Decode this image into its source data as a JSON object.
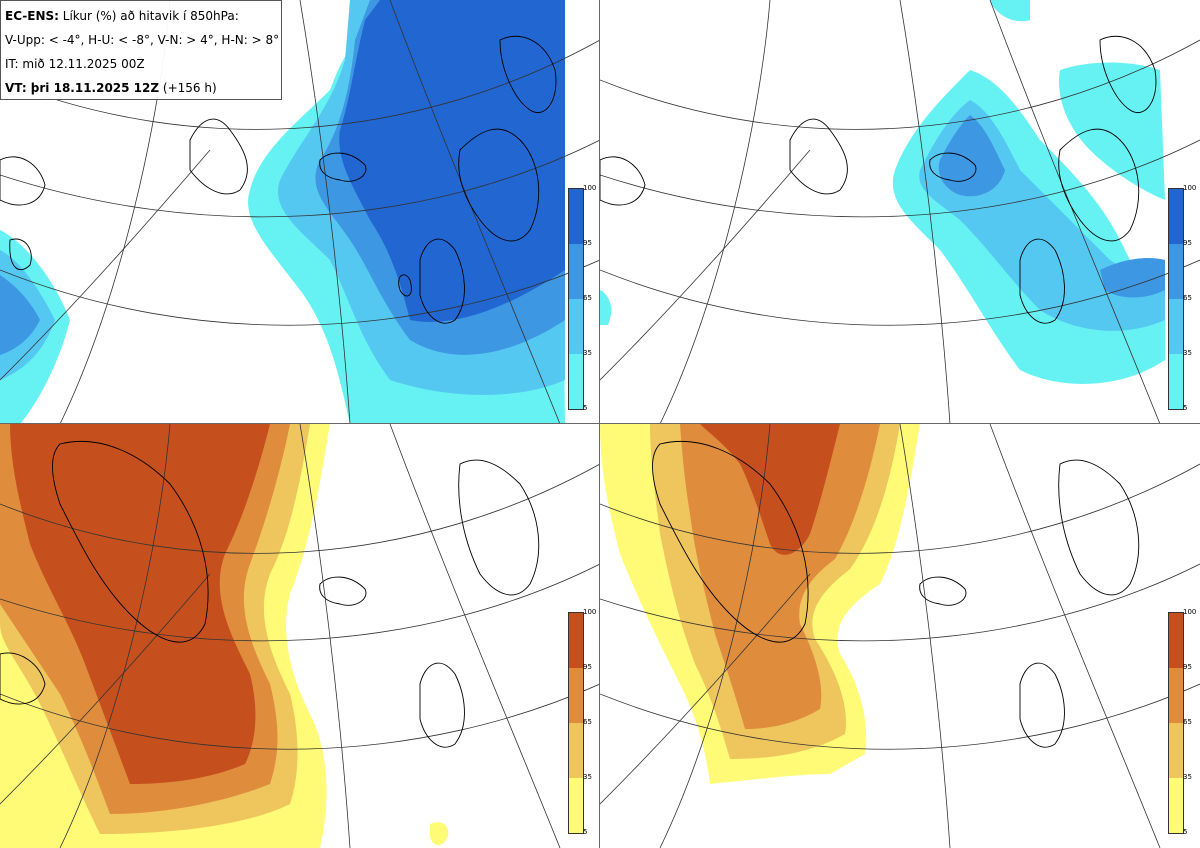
{
  "header": {
    "line1_bold": "EC-ENS:",
    "line1_rest": " Líkur (%) að hitavik í 850hPa:",
    "line2": "V-Upp: < -4°, H-U: < -8°, V-N: > 4°, H-N: > 8°",
    "line3": "IT: mið 12.11.2025 00Z",
    "line4_bold": "VT: þri 18.11.2025 12Z",
    "line4_rest": " (+156 h)"
  },
  "colorbar_labels": [
    "100",
    "95",
    "65",
    "35",
    "5"
  ],
  "colors": {
    "cold": [
      "#66f2f2",
      "#55c8f2",
      "#3d97e2",
      "#2166d1"
    ],
    "warm": [
      "#fffb77",
      "#efc65d",
      "#df8d3d",
      "#c5501e"
    ],
    "land_line": "#000000",
    "grid_line": "#333333"
  },
  "panels": [
    {
      "id": "tl",
      "name": "cold-anomaly-below-minus-4"
    },
    {
      "id": "tr",
      "name": "cold-anomaly-below-minus-8"
    },
    {
      "id": "bl",
      "name": "warm-anomaly-above-4"
    },
    {
      "id": "br",
      "name": "warm-anomaly-above-8"
    }
  ]
}
